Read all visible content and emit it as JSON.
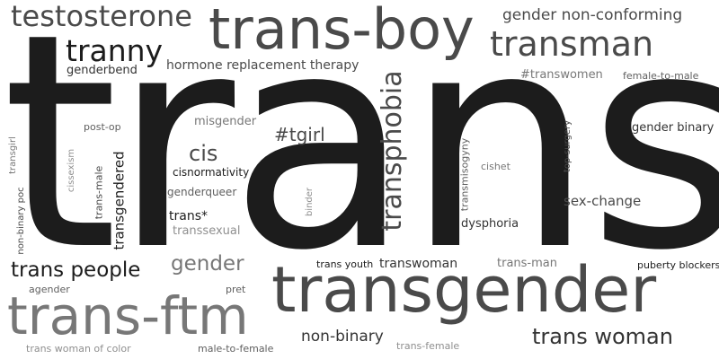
{
  "word_cloud": {
    "background": "#ffffff",
    "colors": [
      "#1c1c1c",
      "#333333",
      "#4a4a4a",
      "#5f5f5f",
      "#777777",
      "#8f8f8f"
    ],
    "words": [
      "trans",
      "trans-boy",
      "transman",
      "testosterone",
      "tranny",
      "gender non-conforming",
      "hormone replacement therapy",
      "genderbend",
      "#transwomen",
      "female-to-male",
      "transgender",
      "trans-ftm",
      "trans woman",
      "trans people",
      "gender",
      "non-binary",
      "transwoman",
      "trans-man",
      "trans youth",
      "puberty blockers",
      "agender",
      "pret",
      "trans woman of color",
      "male-to-female",
      "trans-female",
      "cis",
      "#tgirl",
      "misgender",
      "cisnormativity",
      "genderqueer",
      "trans*",
      "transsexual",
      "post-op",
      "dysphoria",
      "sex-change",
      "gender binary",
      "cishet",
      "transphobia",
      "transgendered",
      "non-binary poc",
      "transgirl",
      "cissexism",
      "trans-male",
      "binder",
      "transmisogyny",
      "top-surgery"
    ]
  }
}
